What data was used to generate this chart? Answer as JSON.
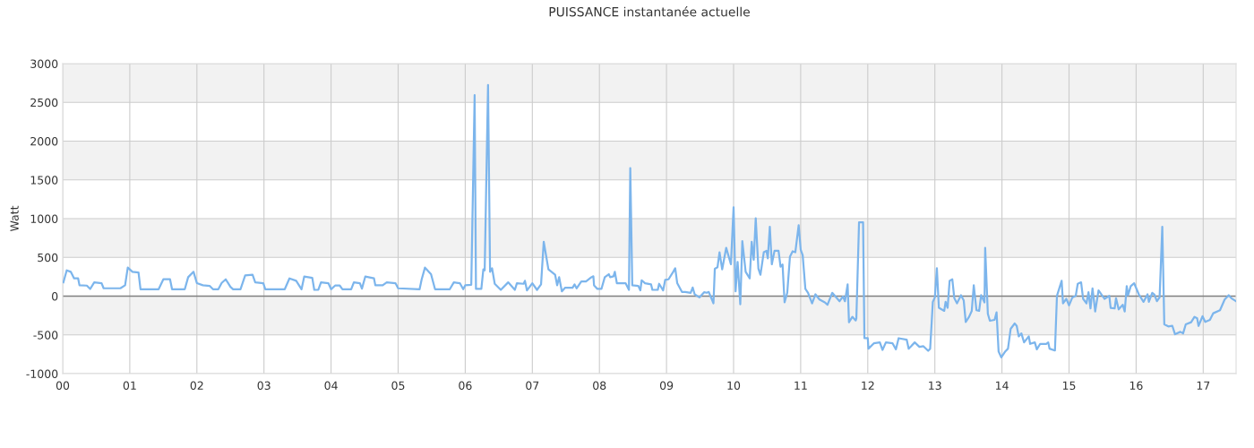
{
  "chart_data": {
    "type": "line",
    "title": "PUISSANCE instantanée actuelle",
    "ylabel": "Watt",
    "xlim": [
      0,
      17.49
    ],
    "xticks": [
      {
        "value": 0,
        "label": "00"
      },
      {
        "value": 1,
        "label": "01"
      },
      {
        "value": 2,
        "label": "02"
      },
      {
        "value": 3,
        "label": "03"
      },
      {
        "value": 4,
        "label": "04"
      },
      {
        "value": 5,
        "label": "05"
      },
      {
        "value": 6,
        "label": "06"
      },
      {
        "value": 7,
        "label": "07"
      },
      {
        "value": 8,
        "label": "08"
      },
      {
        "value": 9,
        "label": "09"
      },
      {
        "value": 10,
        "label": "10"
      },
      {
        "value": 11,
        "label": "11"
      },
      {
        "value": 12,
        "label": "12"
      },
      {
        "value": 13,
        "label": "13"
      },
      {
        "value": 14,
        "label": "14"
      },
      {
        "value": 15,
        "label": "15"
      },
      {
        "value": 16,
        "label": "16"
      },
      {
        "value": 17,
        "label": "17"
      }
    ],
    "ylim": [
      -1000,
      3000
    ],
    "yticks": [
      -1000,
      -500,
      0,
      500,
      1000,
      1500,
      2000,
      2500,
      3000
    ],
    "grid": true,
    "marker": "none",
    "line_style": "solid",
    "bands": [
      {
        "axis": "y",
        "from": 2500,
        "to": 3000,
        "color": "#f2f2f2"
      },
      {
        "axis": "y",
        "from": 1500,
        "to": 2000,
        "color": "#f2f2f2"
      },
      {
        "axis": "y",
        "from": 500,
        "to": 1000,
        "color": "#f2f2f2"
      },
      {
        "axis": "y",
        "from": -500,
        "to": 0,
        "color": "#f2f2f2"
      }
    ],
    "ref_lines": [
      {
        "axis": "y",
        "value": 0,
        "color": "#808080"
      }
    ],
    "series": [
      {
        "color": "#7cb5ec",
        "x": [
          0.01,
          0.06,
          0.12,
          0.17,
          0.23,
          0.25,
          0.36,
          0.41,
          0.47,
          0.58,
          0.61,
          0.86,
          0.93,
          0.97,
          1.04,
          1.13,
          1.16,
          1.43,
          1.5,
          1.6,
          1.63,
          1.82,
          1.87,
          1.95,
          2.0,
          2.09,
          2.19,
          2.24,
          2.32,
          2.37,
          2.43,
          2.5,
          2.54,
          2.65,
          2.72,
          2.83,
          2.87,
          2.99,
          3.02,
          3.31,
          3.38,
          3.48,
          3.56,
          3.6,
          3.72,
          3.75,
          3.81,
          3.85,
          3.96,
          4.0,
          4.06,
          4.13,
          4.17,
          4.3,
          4.34,
          4.43,
          4.46,
          4.51,
          4.64,
          4.66,
          4.77,
          4.83,
          4.96,
          5.0,
          5.32,
          5.35,
          5.4,
          5.49,
          5.55,
          5.77,
          5.83,
          5.92,
          5.97,
          6.0,
          6.09,
          6.14,
          6.16,
          6.24,
          6.27,
          6.29,
          6.34,
          6.37,
          6.4,
          6.44,
          6.53,
          6.64,
          6.74,
          6.77,
          6.87,
          6.89,
          6.92,
          7.0,
          7.07,
          7.13,
          7.17,
          7.24,
          7.34,
          7.37,
          7.4,
          7.44,
          7.49,
          7.6,
          7.63,
          7.66,
          7.73,
          7.8,
          7.88,
          7.91,
          7.92,
          7.97,
          8.03,
          8.08,
          8.14,
          8.16,
          8.21,
          8.23,
          8.26,
          8.39,
          8.44,
          8.46,
          8.49,
          8.58,
          8.61,
          8.63,
          8.68,
          8.77,
          8.79,
          8.87,
          8.89,
          8.95,
          8.98,
          9.03,
          9.1,
          9.13,
          9.16,
          9.23,
          9.28,
          9.36,
          9.39,
          9.42,
          9.49,
          9.56,
          9.6,
          9.63,
          9.7,
          9.72,
          9.76,
          9.79,
          9.83,
          9.89,
          9.96,
          10.0,
          10.03,
          10.06,
          10.1,
          10.13,
          10.18,
          10.24,
          10.27,
          10.3,
          10.33,
          10.37,
          10.4,
          10.45,
          10.49,
          10.51,
          10.54,
          10.57,
          10.61,
          10.67,
          10.7,
          10.73,
          10.76,
          10.8,
          10.84,
          10.88,
          10.92,
          10.97,
          11.0,
          11.03,
          11.07,
          11.11,
          11.17,
          11.22,
          11.28,
          11.36,
          11.4,
          11.47,
          11.58,
          11.63,
          11.66,
          11.7,
          11.72,
          11.77,
          11.82,
          11.83,
          11.87,
          11.93,
          11.95,
          12.0,
          12.01,
          12.09,
          12.18,
          12.22,
          12.27,
          12.37,
          12.42,
          12.46,
          12.58,
          12.61,
          12.7,
          12.77,
          12.83,
          12.9,
          12.93,
          12.97,
          13.0,
          13.03,
          13.06,
          13.14,
          13.16,
          13.19,
          13.22,
          13.26,
          13.29,
          13.33,
          13.39,
          13.43,
          13.46,
          13.51,
          13.55,
          13.58,
          13.62,
          13.66,
          13.69,
          13.74,
          13.75,
          13.79,
          13.82,
          13.89,
          13.92,
          13.95,
          13.99,
          14.05,
          14.09,
          14.13,
          14.19,
          14.22,
          14.25,
          14.29,
          14.33,
          14.4,
          14.42,
          14.49,
          14.52,
          14.57,
          14.66,
          14.69,
          14.71,
          14.79,
          14.82,
          14.89,
          14.91,
          14.96,
          15.0,
          15.05,
          15.1,
          15.13,
          15.18,
          15.21,
          15.26,
          15.29,
          15.32,
          15.35,
          15.39,
          15.44,
          15.49,
          15.53,
          15.6,
          15.62,
          15.68,
          15.7,
          15.74,
          15.8,
          15.83,
          15.86,
          15.88,
          15.92,
          15.97,
          16.04,
          16.11,
          16.17,
          16.19,
          16.24,
          16.27,
          16.31,
          16.35,
          16.39,
          16.42,
          16.48,
          16.54,
          16.58,
          16.66,
          16.7,
          16.74,
          16.82,
          16.87,
          16.91,
          16.93,
          16.99,
          17.03,
          17.1,
          17.15,
          17.25,
          17.32,
          17.38,
          17.42,
          17.49
        ],
        "values": [
          178,
          333,
          314,
          229,
          229,
          140,
          136,
          93,
          178,
          167,
          101,
          101,
          140,
          368,
          314,
          306,
          89,
          89,
          217,
          217,
          89,
          89,
          244,
          314,
          167,
          140,
          132,
          89,
          89,
          171,
          217,
          120,
          89,
          89,
          267,
          275,
          178,
          167,
          89,
          89,
          229,
          198,
          89,
          252,
          236,
          81,
          81,
          178,
          167,
          89,
          136,
          136,
          89,
          89,
          178,
          167,
          97,
          252,
          229,
          140,
          140,
          178,
          167,
          101,
          89,
          213,
          368,
          283,
          89,
          89,
          178,
          167,
          89,
          140,
          147,
          2593,
          93,
          93,
          345,
          333,
          2725,
          314,
          360,
          159,
          81,
          178,
          81,
          167,
          159,
          198,
          74,
          167,
          81,
          151,
          702,
          345,
          275,
          140,
          244,
          62,
          109,
          109,
          151,
          101,
          190,
          190,
          244,
          256,
          140,
          93,
          93,
          244,
          283,
          244,
          256,
          314,
          167,
          167,
          81,
          1651,
          140,
          132,
          74,
          205,
          167,
          151,
          81,
          81,
          159,
          74,
          209,
          217,
          314,
          360,
          167,
          54,
          54,
          43,
          112,
          23,
          -16,
          50,
          43,
          54,
          -93,
          353,
          372,
          566,
          345,
          624,
          411,
          1147,
          62,
          442,
          -105,
          709,
          314,
          229,
          702,
          469,
          1004,
          353,
          275,
          566,
          585,
          488,
          895,
          411,
          585,
          585,
          380,
          407,
          -81,
          43,
          508,
          578,
          566,
          915,
          601,
          527,
          93,
          43,
          -93,
          23,
          -43,
          -81,
          -112,
          43,
          -66,
          -4,
          -66,
          151,
          -337,
          -267,
          -314,
          -287,
          953,
          953,
          -543,
          -543,
          -678,
          -609,
          -597,
          -694,
          -597,
          -609,
          -686,
          -543,
          -562,
          -678,
          -597,
          -655,
          -647,
          -705,
          -678,
          -74,
          -16,
          360,
          -151,
          -190,
          -74,
          -151,
          198,
          217,
          -27,
          -93,
          12,
          -54,
          -333,
          -267,
          -190,
          140,
          -182,
          -190,
          12,
          -81,
          624,
          -229,
          -318,
          -306,
          -209,
          -713,
          -791,
          -713,
          -678,
          -422,
          -353,
          -384,
          -519,
          -481,
          -597,
          -519,
          -616,
          -597,
          -686,
          -616,
          -616,
          -597,
          -678,
          -702,
          4,
          198,
          -93,
          -35,
          -120,
          -16,
          4,
          159,
          178,
          -35,
          -93,
          50,
          -159,
          101,
          -198,
          74,
          12,
          -35,
          4,
          -151,
          -159,
          -27,
          -171,
          -112,
          -198,
          128,
          12,
          128,
          167,
          23,
          -74,
          23,
          -74,
          43,
          23,
          -66,
          -16,
          895,
          -364,
          -391,
          -384,
          -492,
          -461,
          -481,
          -364,
          -337,
          -267,
          -287,
          -384,
          -260,
          -333,
          -306,
          -221,
          -182,
          -43,
          12,
          -27,
          -66
        ]
      }
    ]
  }
}
